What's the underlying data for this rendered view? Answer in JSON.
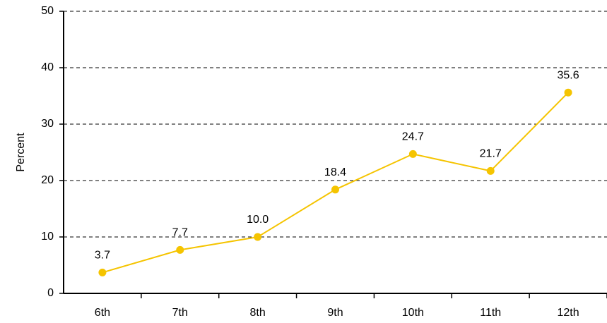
{
  "chart_data": {
    "type": "line",
    "y_label": "Percent",
    "categories": [
      "6th",
      "7th",
      "8th",
      "9th",
      "10th",
      "11th",
      "12th"
    ],
    "values": [
      3.7,
      7.7,
      10.0,
      18.4,
      24.7,
      21.7,
      35.6
    ],
    "value_labels": [
      "3.7",
      "7.7",
      "10.0",
      "18.4",
      "24.7",
      "21.7",
      "35.6"
    ],
    "color": "#f5c400",
    "ylim": [
      0,
      50
    ],
    "yticks": [
      0,
      10,
      20,
      30,
      40,
      50
    ],
    "grid": true
  }
}
